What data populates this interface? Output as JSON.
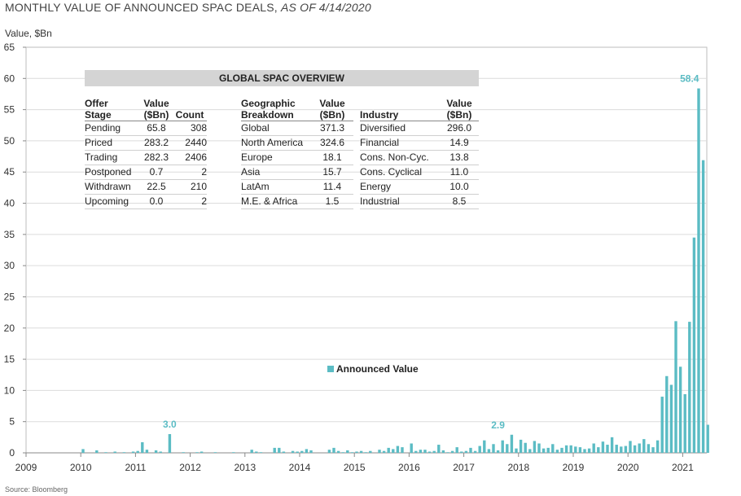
{
  "header": {
    "title_main": "MONTHLY VALUE OF ANNOUNCED SPAC DEALS, ",
    "title_italic": "AS OF 4/14/2020",
    "y_axis_label": "Value, $Bn",
    "source": "Source: Bloomberg"
  },
  "overview": {
    "title": "GLOBAL SPAC OVERVIEW",
    "stage": {
      "h1a": "Offer",
      "h1b": "Stage",
      "h2a": "Value",
      "h2b": "($Bn)",
      "h3": "Count",
      "rows": [
        {
          "label": "Pending",
          "value": "65.8",
          "count": "308"
        },
        {
          "label": "Priced",
          "value": "283.2",
          "count": "2440"
        },
        {
          "label": "Trading",
          "value": "282.3",
          "count": "2406"
        },
        {
          "label": "Postponed",
          "value": "0.7",
          "count": "2"
        },
        {
          "label": "Withdrawn",
          "value": "22.5",
          "count": "210"
        },
        {
          "label": "Upcoming",
          "value": "0.0",
          "count": "2"
        }
      ]
    },
    "geo": {
      "h1a": "Geographic",
      "h1b": "Breakdown",
      "h2a": "Value",
      "h2b": "($Bn)",
      "rows": [
        {
          "label": "Global",
          "value": "371.3"
        },
        {
          "label": "North America",
          "value": "324.6"
        },
        {
          "label": "Europe",
          "value": "18.1"
        },
        {
          "label": "Asia",
          "value": "15.7"
        },
        {
          "label": "LatAm",
          "value": "11.4"
        },
        {
          "label": "M.E. & Africa",
          "value": "1.5"
        }
      ]
    },
    "industry": {
      "h1": "Industry",
      "h2a": "Value",
      "h2b": "($Bn)",
      "rows": [
        {
          "label": "Diversified",
          "value": "296.0"
        },
        {
          "label": "Financial",
          "value": "14.9"
        },
        {
          "label": "Cons. Non-Cyc.",
          "value": "13.8"
        },
        {
          "label": "Cons. Cyclical",
          "value": "11.0"
        },
        {
          "label": "Energy",
          "value": "10.0"
        },
        {
          "label": "Industrial",
          "value": "8.5"
        }
      ]
    }
  },
  "chart_data": {
    "type": "bar",
    "ylim": [
      0,
      65
    ],
    "yticks": [
      0,
      5,
      10,
      15,
      20,
      25,
      30,
      35,
      40,
      45,
      50,
      55,
      60,
      65
    ],
    "x_tick_labels": [
      "2009",
      "2010",
      "2011",
      "2012",
      "2013",
      "2014",
      "2015",
      "2016",
      "2017",
      "2018",
      "2019",
      "2020",
      "2021"
    ],
    "x_start": "2009-01",
    "grid": true,
    "legend": "center",
    "bar_color": "#5bbcc4",
    "series": [
      {
        "name": "Announced Value",
        "values": [
          0.0,
          0.0,
          0.0,
          0.0,
          0.0,
          0.0,
          0.0,
          0.0,
          0.0,
          0.0,
          0.0,
          0.0,
          0.6,
          0.0,
          0.0,
          0.4,
          0.0,
          0.1,
          0.0,
          0.2,
          0.0,
          0.1,
          0.0,
          0.2,
          0.3,
          1.7,
          0.5,
          0.0,
          0.4,
          0.2,
          0.0,
          3.0,
          0.0,
          0.0,
          0.1,
          0.0,
          0.0,
          0.1,
          0.2,
          0.0,
          0.0,
          0.1,
          0.0,
          0.0,
          0.0,
          0.1,
          0.0,
          0.0,
          0.0,
          0.5,
          0.2,
          0.1,
          0.0,
          0.0,
          0.8,
          0.8,
          0.2,
          0.0,
          0.3,
          0.2,
          0.3,
          0.6,
          0.4,
          0.0,
          0.0,
          0.0,
          0.5,
          0.8,
          0.3,
          0.1,
          0.4,
          0.1,
          0.2,
          0.3,
          0.1,
          0.3,
          0.0,
          0.5,
          0.3,
          0.8,
          0.6,
          1.1,
          0.9,
          0.0,
          1.5,
          0.3,
          0.5,
          0.5,
          0.2,
          0.3,
          1.3,
          0.4,
          0.1,
          0.3,
          0.9,
          0.2,
          0.3,
          0.8,
          0.3,
          1.1,
          2.0,
          0.6,
          1.4,
          0.4,
          2.0,
          1.4,
          2.9,
          0.7,
          2.1,
          1.6,
          0.6,
          1.9,
          1.5,
          0.7,
          0.8,
          1.4,
          0.5,
          0.8,
          1.2,
          1.2,
          1.0,
          0.9,
          0.6,
          0.7,
          1.5,
          0.9,
          1.8,
          1.3,
          2.5,
          1.3,
          1.0,
          1.1,
          1.9,
          1.2,
          1.5,
          2.2,
          1.4,
          0.9,
          2.0,
          9.0,
          12.3,
          10.9,
          21.1,
          13.8,
          9.4,
          21.0,
          34.5,
          58.4,
          46.9,
          4.5
        ]
      }
    ],
    "annotations": [
      {
        "text": "3.0",
        "x": "2011-08",
        "y": 3.0
      },
      {
        "text": "2.9",
        "x": "2017-08",
        "y": 2.9
      },
      {
        "text": "58.4",
        "x": "2021-02",
        "y": 58.4
      }
    ]
  }
}
